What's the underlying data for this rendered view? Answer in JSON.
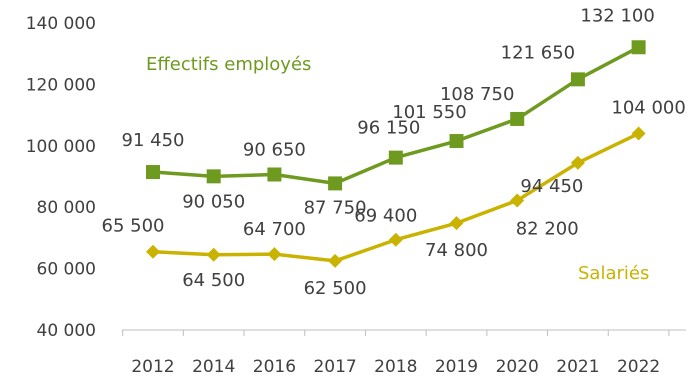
{
  "chart_data": {
    "type": "line",
    "categories": [
      "2012",
      "2014",
      "2016",
      "2017",
      "2018",
      "2019",
      "2020",
      "2021",
      "2022"
    ],
    "ylim": [
      40000,
      140000
    ],
    "yticks": [
      40000,
      60000,
      80000,
      100000,
      120000,
      140000
    ],
    "ytick_labels": [
      "40 000",
      "60 000",
      "80 000",
      "100 000",
      "120 000",
      "140 000"
    ],
    "grid": false,
    "series": [
      {
        "name": "Effectifs employés",
        "color": "#6e9a1f",
        "marker": "square",
        "values": [
          91450,
          90050,
          90650,
          87750,
          96150,
          101550,
          108750,
          121650,
          132100
        ],
        "labels": [
          "91 450",
          "90 050",
          "90 650",
          "87 750",
          "96 150",
          "101 550",
          "108 750",
          "121 650",
          "132 100"
        ]
      },
      {
        "name": "Salariés",
        "color": "#c9b300",
        "marker": "diamond",
        "values": [
          65500,
          64500,
          64700,
          62500,
          69400,
          74800,
          82200,
          94450,
          104000
        ],
        "labels": [
          "65 500",
          "64 500",
          "64 700",
          "62 500",
          "69 400",
          "74 800",
          "82 200",
          "94 450",
          "104 000"
        ]
      }
    ]
  }
}
